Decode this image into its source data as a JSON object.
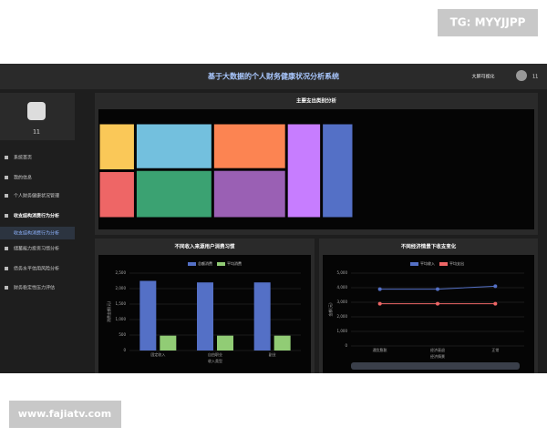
{
  "watermarks": {
    "top": "TG: MYYJJPP",
    "bottom": "www.fajiatv.com"
  },
  "header": {
    "title": "基于大数据的个人财务健康状况分析系统",
    "link": "大屏可视化",
    "user": "11"
  },
  "sidebar": {
    "user": "11",
    "menu": [
      "系统首页",
      "我的信息",
      "个人财务健康状况管理",
      "收支结构消费行为分析",
      "储蓄能力投资习惯分析",
      "债务水平信用风险分析",
      "财务稳定性压力评估"
    ],
    "submenu": [
      "收支结构消费行为分析"
    ]
  },
  "chart_data": [
    {
      "type": "treemap",
      "title": "主要支出类别分析",
      "values": [
        2000,
        2000,
        4100,
        4300,
        3900,
        4100,
        3800,
        3500
      ],
      "colors": [
        "#fac858",
        "#ee6666",
        "#73c0de",
        "#3ba272",
        "#fc8452",
        "#9a60b4",
        "#c77dff",
        "#5470c6"
      ]
    },
    {
      "type": "bar",
      "title": "不同收入来源用户消费习惯",
      "categories": [
        "固定收入",
        "自由职业",
        "副业"
      ],
      "series": [
        {
          "name": "总额消费",
          "color": "#5470c6",
          "values": [
            2250,
            2200,
            2200
          ]
        },
        {
          "name": "平均消费",
          "color": "#91cc75",
          "values": [
            480,
            480,
            480
          ]
        }
      ],
      "ylim": [
        0,
        2500
      ],
      "yticks": [
        0,
        500,
        {
          "value": 1000,
          "label": "1,000"
        },
        {
          "value": 1500,
          "label": "1,500"
        },
        {
          "value": 2000,
          "label": "2,000"
        },
        {
          "value": 2500,
          "label": "2,500"
        }
      ],
      "y_label": "消费金额(元)",
      "x_label": "收入类型"
    },
    {
      "type": "line",
      "title": "不同经济情景下收支变化",
      "categories": [
        "通货膨胀",
        "经济衰退",
        "正常"
      ],
      "series": [
        {
          "name": "平均收入",
          "color": "#5470c6",
          "values": [
            3900,
            3900,
            4100
          ]
        },
        {
          "name": "平均支出",
          "color": "#ee6666",
          "values": [
            2900,
            2900,
            2900
          ]
        }
      ],
      "ylim": [
        0,
        5000
      ],
      "yticks": [
        0,
        {
          "value": 1000,
          "label": "1,000"
        },
        {
          "value": 2000,
          "label": "2,000"
        },
        {
          "value": 3000,
          "label": "3,000"
        },
        {
          "value": 4000,
          "label": "4,000"
        },
        {
          "value": 5000,
          "label": "5,000"
        }
      ],
      "y_label": "金额(元)",
      "x_label": "经济情景"
    }
  ]
}
